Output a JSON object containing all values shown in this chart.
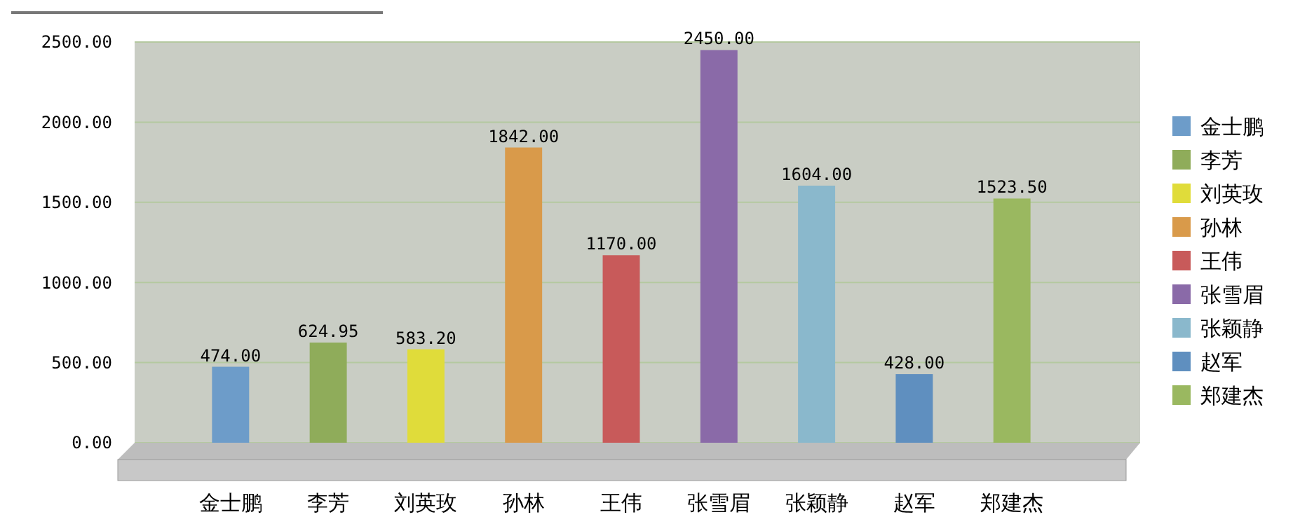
{
  "chart_data": {
    "type": "bar",
    "categories": [
      "金士鹏",
      "李芳",
      "刘英玫",
      "孙林",
      "王伟",
      "张雪眉",
      "张颖静",
      "赵军",
      "郑建杰"
    ],
    "series": [
      {
        "name": "金士鹏",
        "color": "#6d9cc9",
        "values": [
          474,
          null,
          null,
          null,
          null,
          null,
          null,
          null,
          null
        ],
        "value_labels": [
          "474.00",
          null,
          null,
          null,
          null,
          null,
          null,
          null,
          null
        ]
      },
      {
        "name": "李芳",
        "color": "#8fac5a",
        "values": [
          null,
          624.95,
          null,
          null,
          null,
          null,
          null,
          null,
          null
        ],
        "value_labels": [
          null,
          "624.95",
          null,
          null,
          null,
          null,
          null,
          null,
          null
        ]
      },
      {
        "name": "刘英玫",
        "color": "#e0dc3a",
        "values": [
          null,
          null,
          583.2,
          null,
          null,
          null,
          null,
          null,
          null
        ],
        "value_labels": [
          null,
          null,
          "583.20",
          null,
          null,
          null,
          null,
          null,
          null
        ]
      },
      {
        "name": "孙林",
        "color": "#d99a4a",
        "values": [
          null,
          null,
          null,
          1842,
          null,
          null,
          null,
          null,
          null
        ],
        "value_labels": [
          null,
          null,
          null,
          "1842.00",
          null,
          null,
          null,
          null,
          null
        ]
      },
      {
        "name": "王伟",
        "color": "#c85a5a",
        "values": [
          null,
          null,
          null,
          null,
          1170,
          null,
          null,
          null,
          null
        ],
        "value_labels": [
          null,
          null,
          null,
          null,
          "1170.00",
          null,
          null,
          null,
          null
        ]
      },
      {
        "name": "张雪眉",
        "color": "#8a6aa8",
        "values": [
          null,
          null,
          null,
          null,
          null,
          2450,
          null,
          null,
          null
        ],
        "value_labels": [
          null,
          null,
          null,
          null,
          null,
          "2450.00",
          null,
          null,
          null
        ]
      },
      {
        "name": "张颖静",
        "color": "#8ab8cc",
        "values": [
          null,
          null,
          null,
          null,
          null,
          null,
          1604,
          null,
          null
        ],
        "value_labels": [
          null,
          null,
          null,
          null,
          null,
          null,
          "1604.00",
          null,
          null
        ]
      },
      {
        "name": "赵军",
        "color": "#5f8fbf",
        "values": [
          null,
          null,
          null,
          null,
          null,
          null,
          null,
          428,
          null
        ],
        "value_labels": [
          null,
          null,
          null,
          null,
          null,
          null,
          null,
          "428.00",
          null
        ]
      },
      {
        "name": "郑建杰",
        "color": "#9ab860",
        "values": [
          null,
          null,
          null,
          null,
          null,
          null,
          null,
          null,
          1523.5
        ],
        "value_labels": [
          null,
          null,
          null,
          null,
          null,
          null,
          null,
          null,
          "1523.50"
        ]
      }
    ],
    "ylim": [
      0,
      2500
    ],
    "yticks": [
      {
        "value": 0,
        "label": "0.00"
      },
      {
        "value": 500,
        "label": "500.00"
      },
      {
        "value": 1000,
        "label": "1000.00"
      },
      {
        "value": 1500,
        "label": "1500.00"
      },
      {
        "value": 2000,
        "label": "2000.00"
      },
      {
        "value": 2500,
        "label": "2500.00"
      }
    ],
    "grid": "y",
    "legend": "right"
  }
}
